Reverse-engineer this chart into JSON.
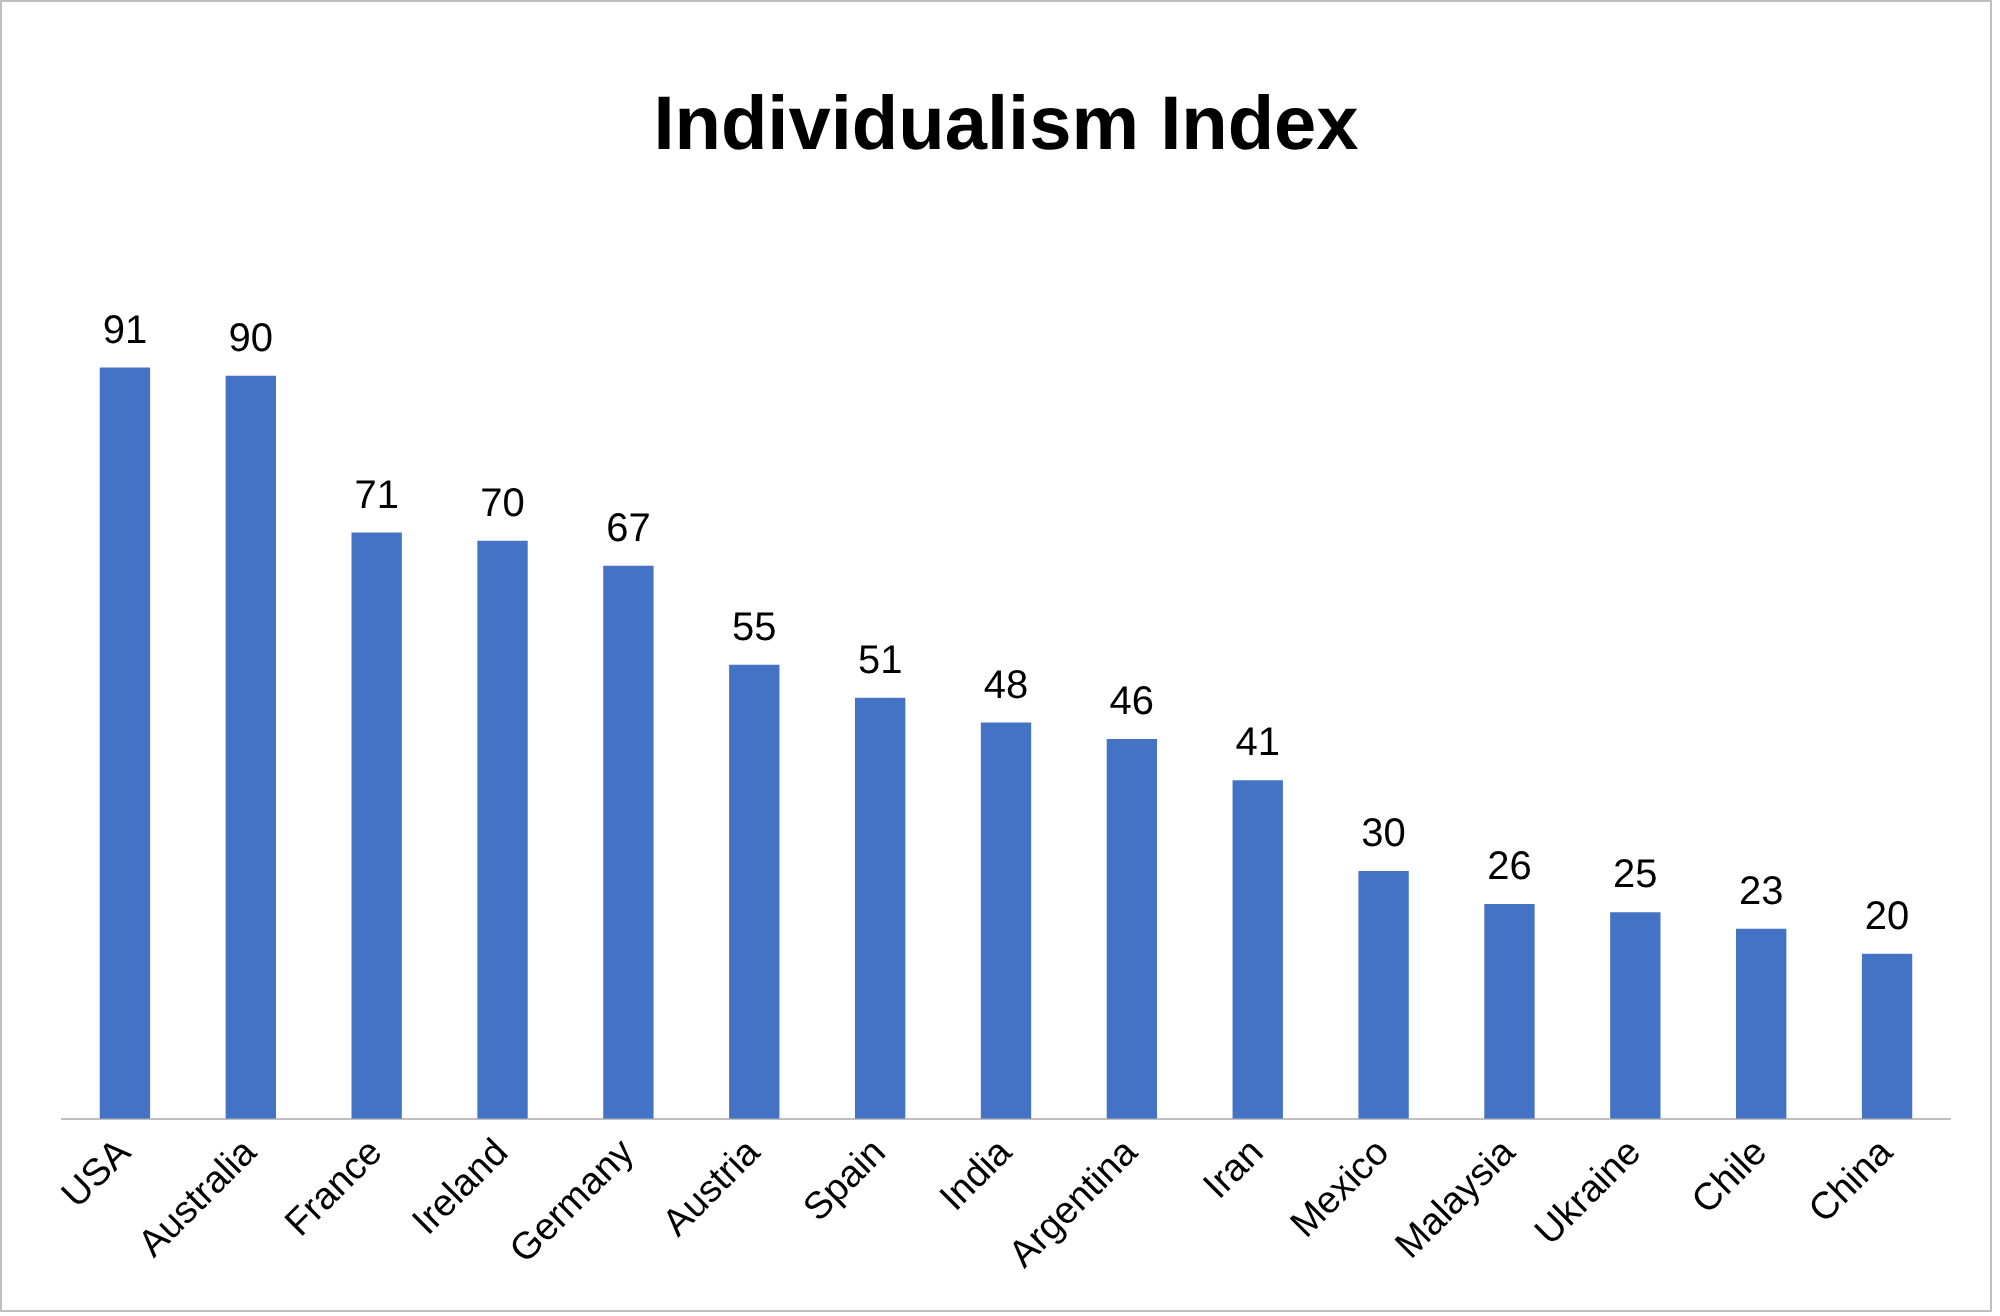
{
  "chart_data": {
    "type": "bar",
    "title": "Individualism Index",
    "categories": [
      "USA",
      "Australia",
      "France",
      "Ireland",
      "Germany",
      "Austria",
      "Spain",
      "India",
      "Argentina",
      "Iran",
      "Mexico",
      "Malaysia",
      "Ukraine",
      "Chile",
      "China"
    ],
    "values": [
      91,
      90,
      71,
      70,
      67,
      55,
      51,
      48,
      46,
      41,
      30,
      26,
      25,
      23,
      20
    ],
    "color": "#4472c4",
    "data_labels": true,
    "grid": false,
    "legend": false
  }
}
